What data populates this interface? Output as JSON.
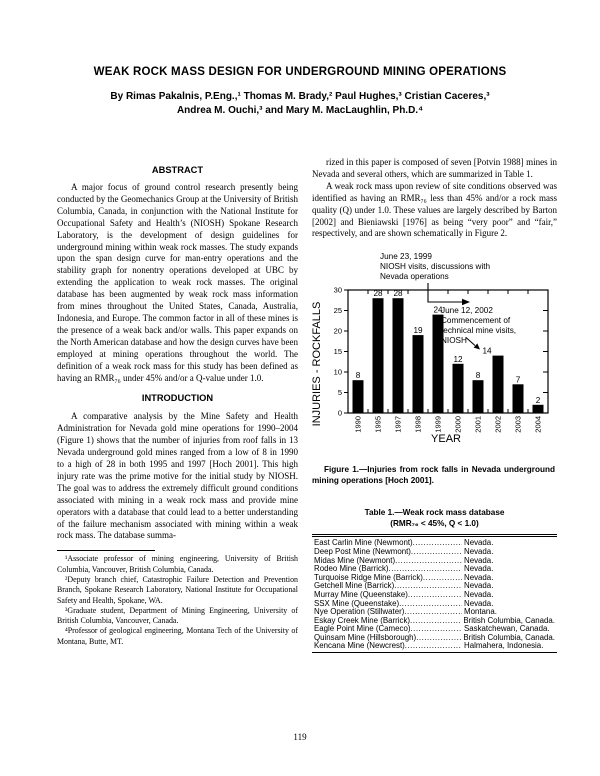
{
  "page": {
    "number": "119"
  },
  "header": {
    "title": "WEAK ROCK MASS DESIGN FOR UNDERGROUND MINING OPERATIONS",
    "authors_line1": "By Rimas Pakalnis, P.Eng.,¹ Thomas M. Brady,² Paul Hughes,³ Cristian Caceres,³",
    "authors_line2": "Andrea M. Ouchi,³ and Mary M. MacLaughlin, Ph.D.⁴"
  },
  "abstract": {
    "heading": "ABSTRACT",
    "body": "A major focus of ground control research presently being conducted by the Geomechanics Group at the University of British Columbia, Canada, in conjunction with the National Institute for Occupational Safety and Health’s (NIOSH) Spokane Research Laboratory, is the development of design guidelines for underground mining within weak rock masses. The study expands upon the span design curve for man-entry operations and the stability graph for nonentry operations developed at UBC by extending the application to weak rock masses. The original database has been augmented by weak rock mass information from mines throughout the United States, Canada, Australia, Indonesia, and Europe. The common factor in all of these mines is the presence of a weak back and/or walls. This paper expands on the North American database and how the design curves have been employed at mining operations throughout the world. The definition of a weak rock mass for this study has been defined as having an RMR₇₆ under 45% and/or a Q-value under 1.0."
  },
  "introduction": {
    "heading": "INTRODUCTION",
    "para1": "A comparative analysis by the Mine Safety and Health Administration for Nevada gold mine operations for 1990–2004 (Figure 1) shows that the number of injuries from roof falls in 13 Nevada underground gold mines ranged from a low of 8 in 1990 to a high of 28 in both 1995 and 1997 [Hoch 2001]. This high injury rate was the prime motive for the initial study by NIOSH. The goal was to address the extremely difficult ground conditions associated with mining in a weak rock mass and provide mine operators with a database that could lead to a better understanding of the failure mechanism associated with mining within a weak rock mass. The database summa-"
  },
  "right_column": {
    "para1": "rized in this paper is composed of seven [Potvin 1988] mines in Nevada and several others, which are summarized in Table 1.",
    "para2": "A weak rock mass upon review of site conditions observed was identified as having an RMR₇₆ less than 45% and/or a rock mass quality (Q) under 1.0. These values are largely described by Barton [2002] and Bieniawski [1976] as being “very poor” and “fair,” respectively, and are shown schematically in Figure 2."
  },
  "footnotes": [
    "¹Associate professor of mining engineering, University of British Columbia, Vancouver, British Columbia, Canada.",
    "²Deputy branch chief, Catastrophic Failure Detection and Prevention Branch, Spokane Research Laboratory, National Institute for Occupational Safety and Health, Spokane, WA.",
    "³Graduate student, Department of Mining Engineering, University of British Columbia, Vancouver, Canada.",
    "⁴Professor of geological engineering, Montana Tech of the University of Montana, Butte, MT."
  ],
  "figure1": {
    "caption": "Figure 1.—Injuries from rock falls in Nevada underground mining operations [Hoch 2001]."
  },
  "chart_data": {
    "type": "bar",
    "categories": [
      "1990",
      "1995",
      "1997",
      "1998",
      "1999",
      "2000",
      "2001",
      "2002",
      "2003",
      "2004"
    ],
    "values": [
      8,
      28,
      28,
      19,
      24,
      12,
      8,
      14,
      7,
      2
    ],
    "title": "",
    "xlabel": "YEAR",
    "ylabel": "INJURIES - ROCKFALLS",
    "ylim": [
      0,
      30
    ],
    "ytick_step": 5,
    "grid": false,
    "legend": null,
    "bar_color": "#000000",
    "annotations": [
      {
        "id": "niosh-visits-1999",
        "text": "June 23, 1999\nNIOSH visits, discussions with\nNevada operations"
      },
      {
        "id": "mine-visits-2002",
        "text": "June 12, 2002\nCommencement of\ntechnical mine visits,\nNIOSH"
      }
    ]
  },
  "table1": {
    "title_line1": "Table 1.—Weak rock mass database",
    "title_line2": "(RMR₇₆ < 45%, Q < 1.0)",
    "rows": [
      {
        "mine": "East Carlin Mine (Newmont)",
        "location": "Nevada."
      },
      {
        "mine": "Deep Post Mine (Newmont)",
        "location": "Nevada."
      },
      {
        "mine": "Midas Mine (Newmont)",
        "location": "Nevada."
      },
      {
        "mine": "Rodeo Mine (Barrick)",
        "location": "Nevada."
      },
      {
        "mine": "Turquoise Ridge Mine (Barrick)",
        "location": "Nevada."
      },
      {
        "mine": "Getchell Mine (Barrick)",
        "location": "Nevada."
      },
      {
        "mine": "Murray Mine (Queenstake)",
        "location": "Nevada."
      },
      {
        "mine": "SSX Mine (Queenstake)",
        "location": "Nevada."
      },
      {
        "mine": "Nye Operation (Stillwater)",
        "location": "Montana."
      },
      {
        "mine": "Eskay Creek Mine (Barrick)",
        "location": "British Columbia, Canada."
      },
      {
        "mine": "Eagle Point Mine (Cameco)",
        "location": "Saskatchewan, Canada."
      },
      {
        "mine": "Quinsam Mine (Hillsborough)",
        "location": "British Columbia, Canada."
      },
      {
        "mine": "Kencana Mine (Newcrest)",
        "location": "Halmahera, Indonesia."
      }
    ]
  }
}
